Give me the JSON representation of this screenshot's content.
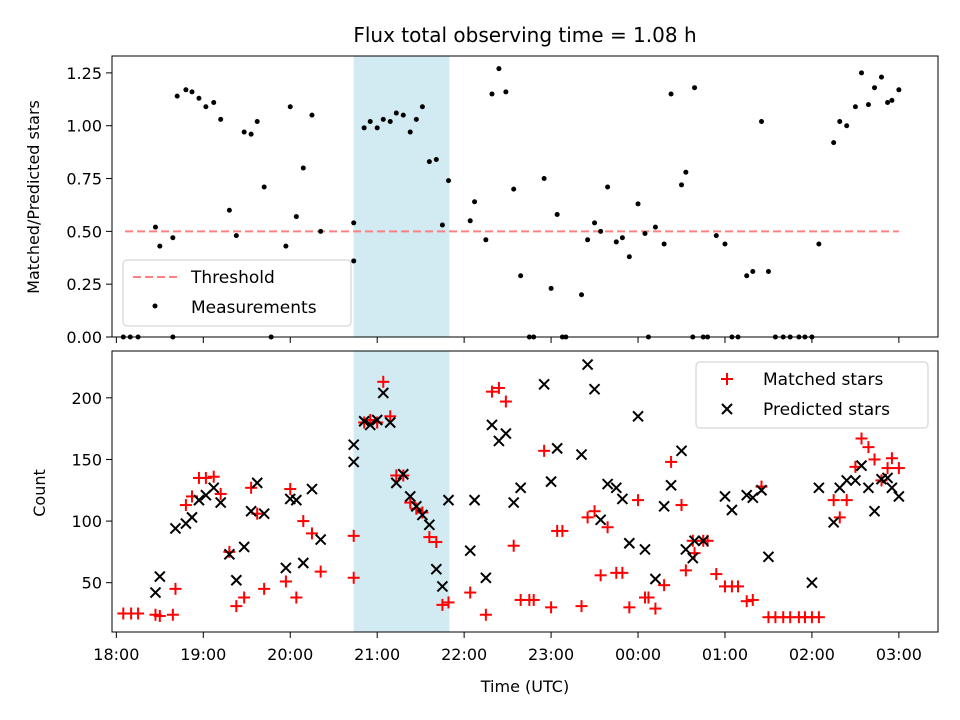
{
  "chart_data": [
    {
      "type": "scatter",
      "title": "Flux total observing time = 1.08 h",
      "xlabel": "",
      "ylabel": "Matched/Predicted stars",
      "x_unit": "hours since 18:00 UTC",
      "xlim": [
        17.95,
        27.45
      ],
      "ylim": [
        0,
        1.33
      ],
      "yticks": [
        0.0,
        0.25,
        0.5,
        0.75,
        1.0,
        1.25
      ],
      "ytick_labels": [
        "0.00",
        "0.25",
        "0.50",
        "0.75",
        "1.00",
        "1.25"
      ],
      "highlight_span": [
        20.73,
        21.83
      ],
      "highlight_color": "#add8e6",
      "threshold": {
        "name": "Threshold",
        "value": 0.5,
        "x": [
          18.1,
          27.0
        ],
        "color": "#ff8080"
      },
      "series": [
        {
          "name": "Measurements",
          "color": "#000000",
          "x": [
            18.08,
            18.16,
            18.25,
            18.45,
            18.5,
            18.65,
            18.65,
            18.7,
            18.8,
            18.87,
            18.95,
            19.03,
            19.12,
            19.2,
            19.3,
            19.38,
            19.47,
            19.55,
            19.62,
            19.7,
            19.78,
            19.95,
            20.0,
            20.07,
            20.15,
            20.25,
            20.35,
            20.73,
            20.73,
            20.85,
            20.92,
            21.0,
            21.07,
            21.15,
            21.22,
            21.3,
            21.38,
            21.45,
            21.52,
            21.6,
            21.68,
            21.75,
            21.82,
            22.07,
            22.12,
            22.25,
            22.32,
            22.4,
            22.48,
            22.57,
            22.65,
            22.75,
            22.8,
            22.92,
            23.0,
            23.07,
            23.13,
            23.17,
            23.35,
            23.42,
            23.5,
            23.57,
            23.65,
            23.75,
            23.82,
            23.9,
            24.0,
            24.08,
            24.12,
            24.2,
            24.3,
            24.38,
            24.5,
            24.55,
            24.63,
            24.65,
            24.75,
            24.8,
            24.9,
            25.0,
            25.08,
            25.15,
            25.25,
            25.32,
            25.42,
            25.5,
            25.58,
            25.67,
            25.75,
            25.85,
            25.92,
            26.0,
            26.08,
            26.25,
            26.32,
            26.4,
            26.5,
            26.57,
            26.65,
            26.72,
            26.8,
            26.87,
            26.92,
            27.0
          ],
          "y": [
            0.0,
            0.0,
            0.0,
            0.52,
            0.43,
            0.47,
            0.0,
            1.14,
            1.17,
            1.16,
            1.13,
            1.09,
            1.11,
            1.03,
            0.6,
            0.48,
            0.97,
            0.96,
            1.02,
            0.71,
            0.0,
            0.43,
            1.09,
            0.57,
            0.8,
            1.05,
            0.5,
            0.36,
            0.54,
            0.99,
            1.02,
            0.99,
            1.03,
            1.02,
            1.06,
            1.05,
            0.97,
            1.03,
            1.09,
            0.83,
            0.84,
            0.53,
            0.74,
            0.55,
            0.64,
            0.46,
            1.15,
            1.27,
            1.16,
            0.7,
            0.29,
            0.0,
            0.0,
            0.75,
            0.23,
            0.58,
            0.0,
            0.0,
            0.2,
            0.46,
            0.54,
            0.5,
            0.71,
            0.45,
            0.47,
            0.38,
            0.63,
            0.49,
            0.0,
            0.52,
            0.44,
            1.15,
            0.72,
            0.78,
            0.0,
            1.18,
            0.0,
            0.0,
            0.48,
            0.44,
            0.0,
            0.0,
            0.29,
            0.31,
            1.02,
            0.31,
            0.0,
            0.0,
            0.0,
            0.0,
            0.0,
            0.0,
            0.44,
            0.92,
            1.02,
            1.0,
            1.09,
            1.25,
            1.1,
            1.18,
            1.23,
            1.11,
            1.12,
            1.17
          ]
        }
      ],
      "legend_position": "lower-left"
    },
    {
      "type": "scatter",
      "title": "",
      "xlabel": "Time (UTC)",
      "ylabel": "Count",
      "x_unit": "hours since 18:00 UTC",
      "xlim": [
        17.95,
        27.45
      ],
      "ylim": [
        10,
        238
      ],
      "yticks": [
        50,
        100,
        150,
        200
      ],
      "ytick_labels": [
        "50",
        "100",
        "150",
        "200"
      ],
      "xticks": [
        18,
        19,
        20,
        21,
        22,
        23,
        24,
        25,
        26,
        27
      ],
      "xtick_labels": [
        "18:00",
        "19:00",
        "20:00",
        "21:00",
        "22:00",
        "23:00",
        "00:00",
        "01:00",
        "02:00",
        "03:00"
      ],
      "highlight_span": [
        20.73,
        21.83
      ],
      "highlight_color": "#add8e6",
      "series": [
        {
          "name": "Matched stars",
          "marker": "plus",
          "color": "#ff0000",
          "x": [
            18.08,
            18.17,
            18.25,
            18.45,
            18.5,
            18.65,
            18.68,
            18.8,
            18.87,
            18.95,
            19.03,
            19.12,
            19.2,
            19.3,
            19.38,
            19.47,
            19.55,
            19.62,
            19.7,
            19.95,
            20.0,
            20.07,
            20.15,
            20.25,
            20.35,
            20.73,
            20.73,
            20.85,
            20.92,
            21.0,
            21.07,
            21.15,
            21.22,
            21.3,
            21.38,
            21.45,
            21.52,
            21.6,
            21.68,
            21.75,
            21.82,
            22.07,
            22.25,
            22.32,
            22.4,
            22.48,
            22.57,
            22.65,
            22.75,
            22.8,
            22.92,
            23.0,
            23.07,
            23.13,
            23.35,
            23.42,
            23.5,
            23.57,
            23.65,
            23.75,
            23.82,
            23.9,
            24.0,
            24.08,
            24.12,
            24.2,
            24.3,
            24.38,
            24.5,
            24.55,
            24.63,
            24.65,
            24.75,
            24.8,
            24.9,
            25.0,
            25.08,
            25.15,
            25.25,
            25.32,
            25.42,
            25.5,
            25.58,
            25.67,
            25.75,
            25.85,
            25.92,
            26.0,
            26.08,
            26.25,
            26.32,
            26.4,
            26.5,
            26.57,
            26.65,
            26.72,
            26.8,
            26.87,
            26.92,
            27.0
          ],
          "y": [
            25,
            25,
            25,
            24,
            23,
            24,
            45,
            113,
            120,
            135,
            135,
            136,
            122,
            75,
            31,
            38,
            127,
            106,
            45,
            51,
            126,
            38,
            100,
            90,
            59,
            54,
            88,
            180,
            182,
            180,
            213,
            185,
            137,
            137,
            115,
            110,
            107,
            87,
            83,
            32,
            34,
            42,
            24,
            205,
            208,
            197,
            80,
            36,
            36,
            36,
            157,
            30,
            92,
            92,
            31,
            103,
            108,
            56,
            95,
            58,
            58,
            30,
            117,
            38,
            38,
            29,
            48,
            148,
            113,
            60,
            84,
            74,
            84,
            84,
            57,
            47,
            47,
            47,
            35,
            36,
            128,
            22,
            22,
            22,
            22,
            22,
            22,
            22,
            22,
            117,
            103,
            117,
            144,
            167,
            160,
            150,
            133,
            143,
            151,
            143
          ],
          "legend_label": "Matched stars"
        },
        {
          "name": "Predicted stars",
          "marker": "x",
          "color": "#000000",
          "x": [
            18.45,
            18.5,
            18.68,
            18.8,
            18.87,
            18.95,
            19.03,
            19.12,
            19.2,
            19.3,
            19.38,
            19.47,
            19.55,
            19.62,
            19.7,
            19.95,
            20.0,
            20.07,
            20.15,
            20.25,
            20.35,
            20.73,
            20.73,
            20.85,
            20.92,
            21.0,
            21.07,
            21.15,
            21.22,
            21.3,
            21.38,
            21.45,
            21.52,
            21.6,
            21.68,
            21.75,
            21.82,
            22.07,
            22.12,
            22.25,
            22.32,
            22.4,
            22.48,
            22.57,
            22.65,
            22.92,
            23.0,
            23.07,
            23.35,
            23.42,
            23.5,
            23.57,
            23.65,
            23.75,
            23.82,
            23.9,
            24.0,
            24.08,
            24.2,
            24.3,
            24.38,
            24.5,
            24.55,
            24.63,
            24.65,
            24.75,
            25.0,
            25.08,
            25.25,
            25.32,
            25.42,
            25.5,
            26.0,
            26.08,
            26.25,
            26.32,
            26.4,
            26.5,
            26.57,
            26.65,
            26.72,
            26.8,
            26.87,
            26.92,
            27.0
          ],
          "y": [
            42,
            55,
            94,
            98,
            103,
            117,
            121,
            127,
            115,
            73,
            52,
            79,
            108,
            131,
            106,
            62,
            118,
            117,
            66,
            126,
            85,
            148,
            162,
            181,
            178,
            182,
            204,
            180,
            131,
            138,
            120,
            112,
            105,
            97,
            61,
            47,
            117,
            76,
            117,
            54,
            178,
            165,
            171,
            115,
            127,
            211,
            132,
            159,
            154,
            227,
            207,
            101,
            130,
            127,
            118,
            82,
            185,
            77,
            53,
            112,
            129,
            157,
            77,
            70,
            84,
            84,
            120,
            109,
            121,
            119,
            125,
            71,
            50,
            127,
            99,
            127,
            133,
            133,
            145,
            127,
            108,
            134,
            135,
            127,
            120
          ],
          "legend_label": "Predicted stars"
        }
      ],
      "legend_position": "top-right"
    }
  ]
}
